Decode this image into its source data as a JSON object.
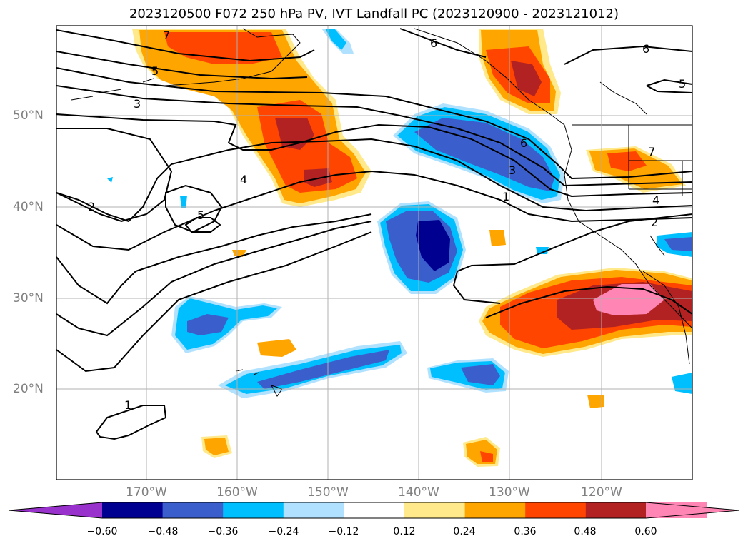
{
  "title": "2023120500 F072 250 hPa PV, IVT Landfall PC (2023120900 - 2023121012)",
  "lat_labels": [
    "50°N",
    "40°N",
    "30°N",
    "20°N"
  ],
  "lon_labels": [
    "170°W",
    "160°W",
    "150°W",
    "140°W",
    "130°W",
    "120°W"
  ],
  "contour_labels": [
    "7",
    "5",
    "3",
    "4",
    "5",
    "2",
    "1",
    "6",
    "6",
    "5",
    "6",
    "3",
    "1",
    "7",
    "4",
    "2"
  ],
  "colorbar": {
    "ticks": [
      "−0.60",
      "−0.48",
      "−0.36",
      "−0.24",
      "−0.12",
      "0.12",
      "0.24",
      "0.36",
      "0.48",
      "0.60"
    ],
    "colors": [
      "#9932cc",
      "#000090",
      "#3a5fcd",
      "#00bfff",
      "#b0e2ff",
      "#ffffff",
      "#ffe98a",
      "#ffa500",
      "#ff4500",
      "#b22222",
      "#ff86b4",
      "#ff86b4"
    ]
  },
  "fill_colors": {
    "purple": "#9932cc",
    "navy": "#000090",
    "blue": "#3a5fcd",
    "cyan": "#00bfff",
    "lightblue": "#b0e2ff",
    "yellow": "#ffe98a",
    "orange": "#ffa500",
    "redorange": "#ff4500",
    "firebrick": "#b22222",
    "pink": "#ff86b4"
  }
}
